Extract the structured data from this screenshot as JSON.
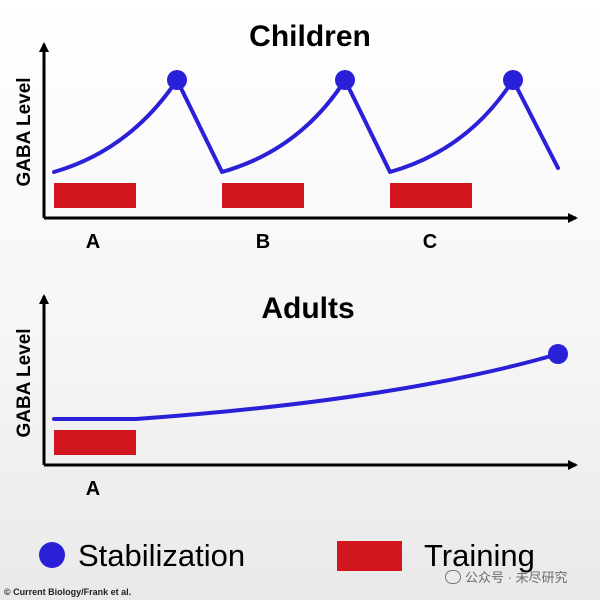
{
  "panels": {
    "children": {
      "title": "Children",
      "ylabel": "GABA Level",
      "phases": [
        "A",
        "B",
        "C"
      ]
    },
    "adults": {
      "title": "Adults",
      "ylabel": "GABA Level",
      "phases": [
        "A"
      ]
    }
  },
  "legend": {
    "stabilization": "Stabilization",
    "training": "Training"
  },
  "credit": "© Current Biology/Frank et al.",
  "watermark": "公众号 · 未尽研究",
  "colors": {
    "line": "#2a20d8",
    "marker": "#2a20d8",
    "training_bar": "#d2161e",
    "axis": "#000000"
  },
  "icons": [
    "stabilization-dot-icon",
    "training-bar-icon",
    "wechat-icon"
  ]
}
